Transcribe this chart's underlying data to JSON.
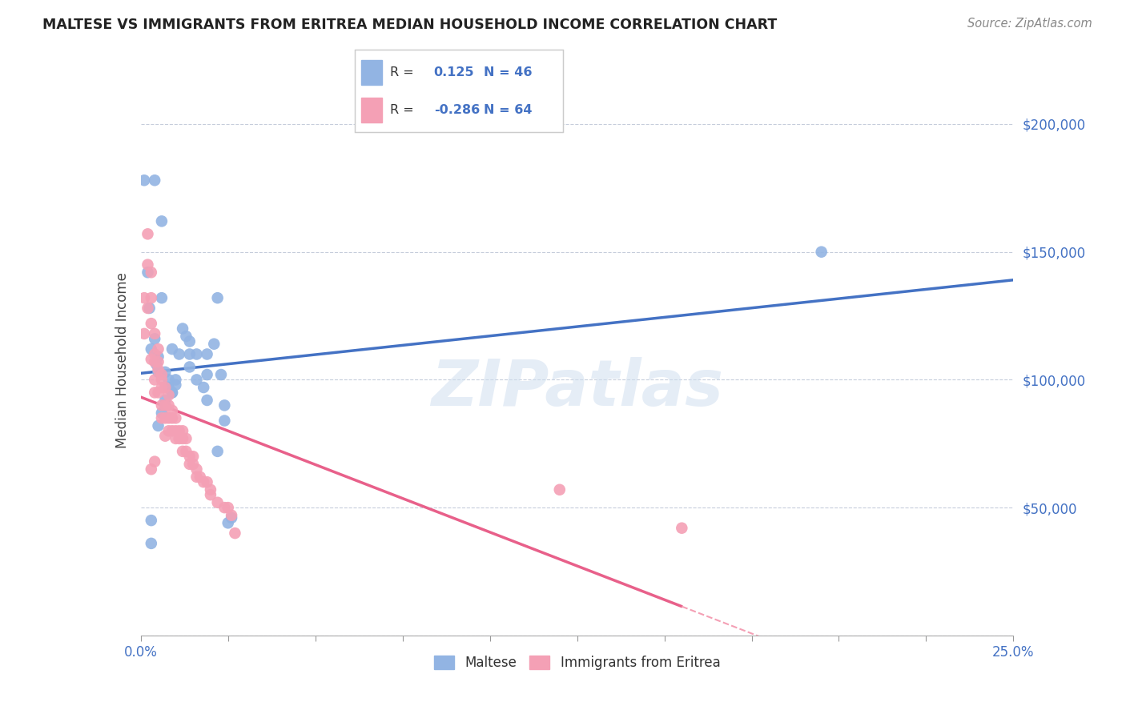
{
  "title": "MALTESE VS IMMIGRANTS FROM ERITREA MEDIAN HOUSEHOLD INCOME CORRELATION CHART",
  "source": "Source: ZipAtlas.com",
  "ylabel": "Median Household Income",
  "yticks": [
    0,
    50000,
    100000,
    150000,
    200000
  ],
  "ytick_labels": [
    "",
    "$50,000",
    "$100,000",
    "$150,000",
    "$200,000"
  ],
  "xlim": [
    0.0,
    0.25
  ],
  "ylim": [
    0,
    215000
  ],
  "blue_color": "#92b4e3",
  "pink_color": "#f4a0b5",
  "blue_line_color": "#4472c4",
  "pink_line_color": "#e8608a",
  "pink_dash_color": "#f4a0b5",
  "watermark": "ZIPatlas",
  "legend_label1": "Maltese",
  "legend_label2": "Immigrants from Eritrea",
  "blue_scatter_x": [
    0.001,
    0.004,
    0.002,
    0.006,
    0.006,
    0.0025,
    0.003,
    0.004,
    0.0045,
    0.005,
    0.005,
    0.007,
    0.008,
    0.008,
    0.009,
    0.009,
    0.011,
    0.012,
    0.013,
    0.014,
    0.014,
    0.016,
    0.018,
    0.019,
    0.019,
    0.021,
    0.023,
    0.024,
    0.024,
    0.026,
    0.003,
    0.003,
    0.005,
    0.006,
    0.007,
    0.007,
    0.009,
    0.01,
    0.01,
    0.014,
    0.016,
    0.019,
    0.022,
    0.025,
    0.195,
    0.022
  ],
  "blue_scatter_y": [
    178000,
    178000,
    142000,
    162000,
    132000,
    128000,
    112000,
    116000,
    106000,
    109000,
    103000,
    103000,
    100000,
    97000,
    95000,
    112000,
    110000,
    120000,
    117000,
    115000,
    110000,
    110000,
    97000,
    92000,
    110000,
    114000,
    102000,
    90000,
    84000,
    46000,
    45000,
    36000,
    82000,
    87000,
    92000,
    90000,
    95000,
    98000,
    100000,
    105000,
    100000,
    102000,
    72000,
    44000,
    150000,
    132000
  ],
  "pink_scatter_x": [
    0.001,
    0.001,
    0.002,
    0.002,
    0.002,
    0.003,
    0.003,
    0.003,
    0.003,
    0.004,
    0.004,
    0.004,
    0.004,
    0.004,
    0.005,
    0.005,
    0.005,
    0.005,
    0.006,
    0.006,
    0.006,
    0.006,
    0.006,
    0.007,
    0.007,
    0.007,
    0.007,
    0.008,
    0.008,
    0.008,
    0.008,
    0.009,
    0.009,
    0.009,
    0.01,
    0.01,
    0.01,
    0.011,
    0.011,
    0.012,
    0.012,
    0.012,
    0.013,
    0.013,
    0.014,
    0.014,
    0.015,
    0.015,
    0.016,
    0.016,
    0.017,
    0.018,
    0.019,
    0.02,
    0.02,
    0.022,
    0.024,
    0.025,
    0.026,
    0.027,
    0.003,
    0.004,
    0.12,
    0.155
  ],
  "pink_scatter_y": [
    132000,
    118000,
    157000,
    145000,
    128000,
    142000,
    132000,
    122000,
    108000,
    118000,
    110000,
    107000,
    100000,
    95000,
    112000,
    107000,
    104000,
    95000,
    102000,
    100000,
    97000,
    90000,
    85000,
    97000,
    90000,
    85000,
    78000,
    94000,
    90000,
    85000,
    80000,
    88000,
    85000,
    80000,
    85000,
    80000,
    77000,
    80000,
    77000,
    80000,
    77000,
    72000,
    77000,
    72000,
    70000,
    67000,
    70000,
    67000,
    65000,
    62000,
    62000,
    60000,
    60000,
    57000,
    55000,
    52000,
    50000,
    50000,
    47000,
    40000,
    65000,
    68000,
    57000,
    42000
  ]
}
